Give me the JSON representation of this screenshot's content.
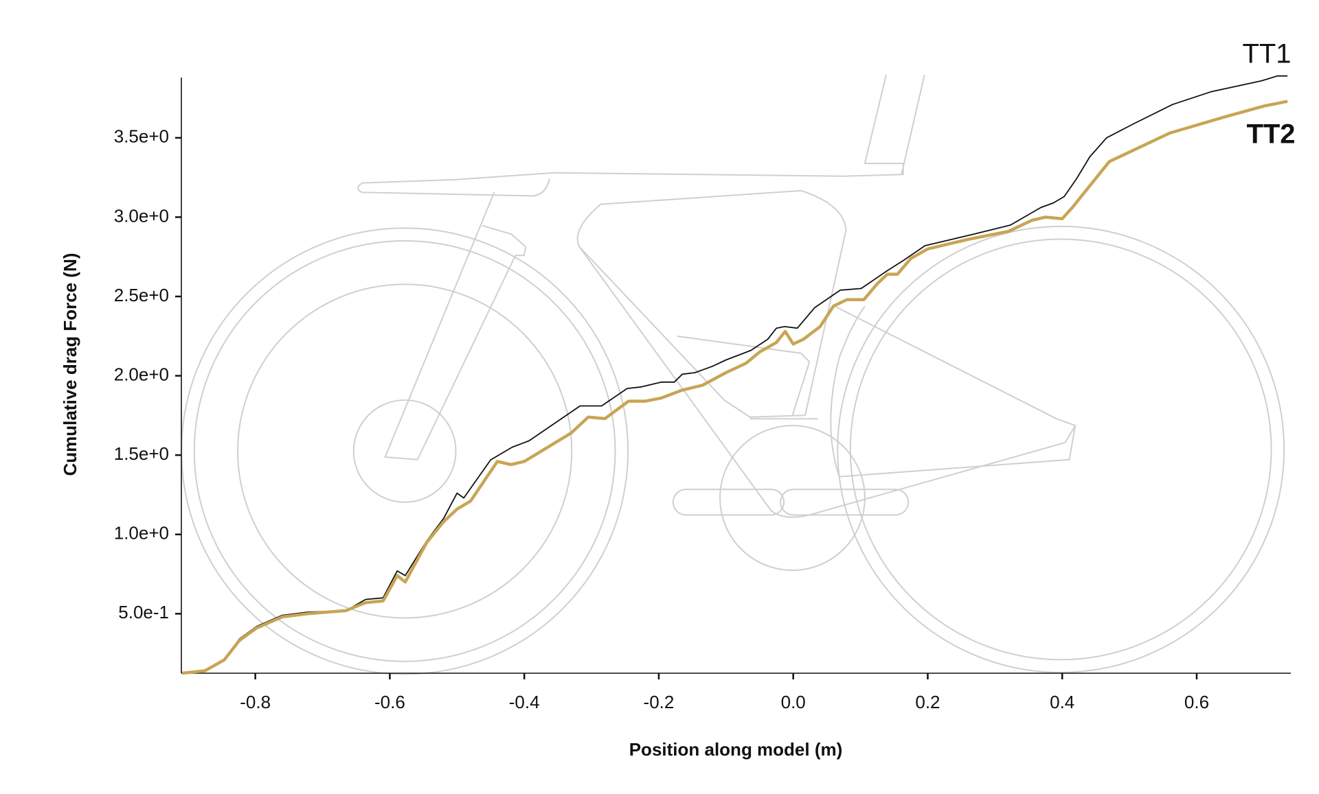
{
  "chart_data": {
    "type": "line",
    "xlabel": "Position along model (m)",
    "ylabel": "Cumulative drag Force (N)",
    "xlim": [
      -0.91,
      0.74
    ],
    "ylim": [
      0.125,
      3.88
    ],
    "xticks": [
      -0.8,
      -0.6,
      -0.4,
      -0.2,
      {
        "value": 0,
        "label": "0.0"
      },
      0.2,
      0.4,
      0.6
    ],
    "yticks": [
      {
        "value": 0.5,
        "label": "5.0e-1"
      },
      {
        "value": 1.0,
        "label": "1.0e+0"
      },
      {
        "value": 1.5,
        "label": "1.5e+0"
      },
      {
        "value": 2.0,
        "label": "2.0e+0"
      },
      {
        "value": 2.5,
        "label": "2.5e+0"
      },
      {
        "value": 3.0,
        "label": "3.0e+0"
      },
      {
        "value": 3.5,
        "label": "3.5e+0"
      }
    ],
    "series": [
      {
        "name": "TT1",
        "color": "#111111",
        "x": [
          -0.909,
          -0.875,
          -0.846,
          -0.824,
          -0.798,
          -0.76,
          -0.722,
          -0.665,
          -0.636,
          -0.61,
          -0.589,
          -0.577,
          -0.545,
          -0.52,
          -0.5,
          -0.49,
          -0.45,
          -0.418,
          -0.393,
          -0.317,
          -0.285,
          -0.247,
          -0.226,
          -0.196,
          -0.177,
          -0.165,
          -0.146,
          -0.12,
          -0.1,
          -0.063,
          -0.038,
          -0.025,
          -0.013,
          0.006,
          0.032,
          0.07,
          0.101,
          0.139,
          0.165,
          0.196,
          0.266,
          0.323,
          0.368,
          0.387,
          0.403,
          0.421,
          0.441,
          0.466,
          0.507,
          0.564,
          0.621,
          0.697,
          0.72,
          0.735
        ],
        "values": [
          0.125,
          0.14,
          0.21,
          0.34,
          0.42,
          0.49,
          0.51,
          0.52,
          0.59,
          0.6,
          0.77,
          0.74,
          0.96,
          1.1,
          1.26,
          1.23,
          1.47,
          1.55,
          1.59,
          1.81,
          1.81,
          1.92,
          1.93,
          1.96,
          1.96,
          2.01,
          2.02,
          2.06,
          2.1,
          2.16,
          2.23,
          2.3,
          2.31,
          2.3,
          2.43,
          2.54,
          2.55,
          2.66,
          2.73,
          2.82,
          2.89,
          2.95,
          3.06,
          3.09,
          3.13,
          3.24,
          3.38,
          3.5,
          3.59,
          3.71,
          3.79,
          3.86,
          3.89,
          3.89
        ]
      },
      {
        "name": "TT2",
        "color": "#c8a555",
        "x": [
          -0.909,
          -0.875,
          -0.846,
          -0.824,
          -0.798,
          -0.76,
          -0.722,
          -0.665,
          -0.636,
          -0.61,
          -0.589,
          -0.577,
          -0.545,
          -0.52,
          -0.5,
          -0.48,
          -0.44,
          -0.42,
          -0.4,
          -0.33,
          -0.305,
          -0.28,
          -0.245,
          -0.22,
          -0.196,
          -0.165,
          -0.135,
          -0.1,
          -0.07,
          -0.05,
          -0.025,
          -0.012,
          0.0,
          0.015,
          0.04,
          0.06,
          0.08,
          0.105,
          0.125,
          0.14,
          0.155,
          0.175,
          0.2,
          0.26,
          0.32,
          0.355,
          0.375,
          0.4,
          0.415,
          0.43,
          0.47,
          0.56,
          0.64,
          0.7,
          0.735
        ],
        "values": [
          0.125,
          0.14,
          0.21,
          0.33,
          0.41,
          0.48,
          0.5,
          0.52,
          0.57,
          0.58,
          0.74,
          0.7,
          0.95,
          1.08,
          1.16,
          1.21,
          1.46,
          1.44,
          1.46,
          1.64,
          1.74,
          1.73,
          1.84,
          1.84,
          1.86,
          1.91,
          1.94,
          2.02,
          2.08,
          2.15,
          2.21,
          2.28,
          2.2,
          2.23,
          2.31,
          2.44,
          2.48,
          2.48,
          2.58,
          2.64,
          2.64,
          2.74,
          2.8,
          2.86,
          2.91,
          2.98,
          3.0,
          2.99,
          3.06,
          3.14,
          3.35,
          3.53,
          3.63,
          3.7,
          3.73
        ]
      }
    ]
  }
}
